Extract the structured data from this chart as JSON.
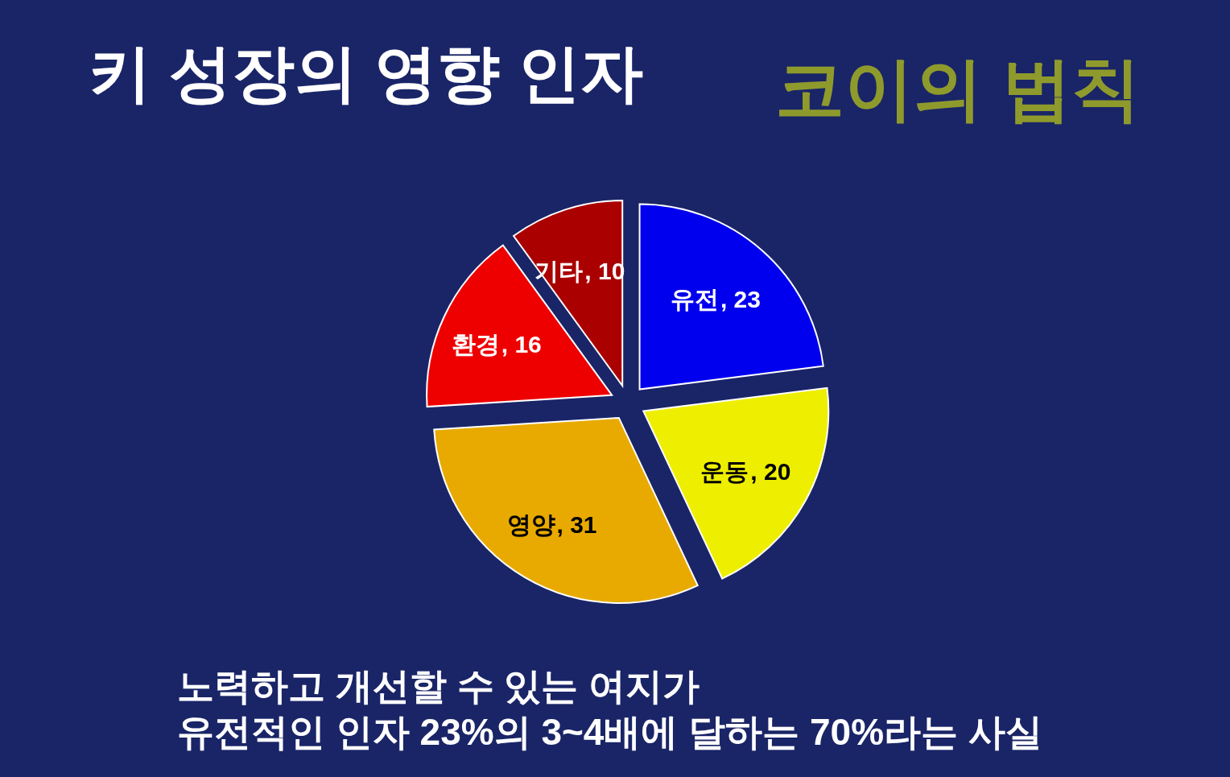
{
  "chart_data": {
    "type": "pie",
    "title": "키 성장의 영향 인자",
    "categories": [
      "유전",
      "운동",
      "영양",
      "환경",
      "기타"
    ],
    "values": [
      23,
      20,
      31,
      16,
      10
    ],
    "colors": [
      "#0000ee",
      "#eeee00",
      "#e8aa00",
      "#ee0000",
      "#aa0000"
    ],
    "value_labels": [
      ", 23",
      ", 20",
      ", 31",
      ", 16",
      ", 10"
    ],
    "annotations": [
      "코이의 법칙",
      "노력하고 개선할 수 있는 여지가",
      "유전적인 인자 23%의 3~4배에 달하는 70%라는 사실"
    ]
  }
}
